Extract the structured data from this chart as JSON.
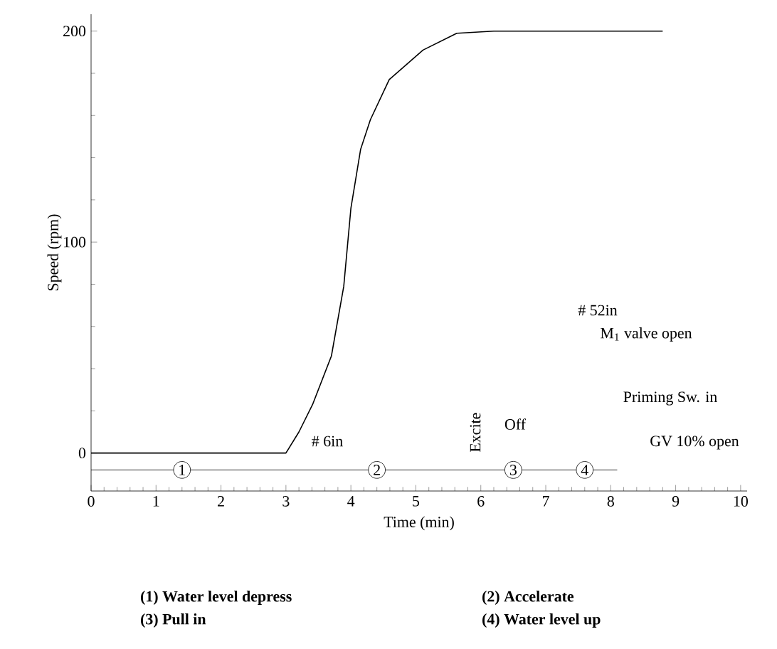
{
  "chart_data": {
    "type": "line",
    "xlabel": "Time (min)",
    "ylabel": "Speed (rpm)",
    "xlim": [
      0,
      10.1
    ],
    "ylim": [
      -18,
      208
    ],
    "xticks": [
      0,
      1,
      2,
      3,
      4,
      5,
      6,
      7,
      8,
      9,
      10
    ],
    "yticks": [
      0,
      100,
      200
    ],
    "grid": false,
    "marker": "none",
    "line_style": "solid",
    "series": [
      {
        "color": "#000000",
        "x": [
          0,
          3,
          3.2,
          3.41,
          3.7,
          3.89,
          4.0,
          4.15,
          4.3,
          4.59,
          5.11,
          5.63,
          6.2,
          7.5,
          8.8
        ],
        "values": [
          0,
          0,
          10,
          23,
          46,
          79,
          116,
          144,
          158,
          177,
          191,
          199,
          200,
          200,
          200
        ]
      },
      {
        "color": "#000000",
        "x": [
          0,
          3,
          6,
          7,
          7.1,
          8.1
        ],
        "values": [
          -8,
          -8,
          -8,
          -8,
          -8,
          -8
        ]
      }
    ],
    "annotations": [
      {
        "text": "1",
        "x": 1.4,
        "y": -8
      },
      {
        "text": "2",
        "x": 4.4,
        "y": -8
      },
      {
        "text": "3",
        "x": 6.5,
        "y": -8
      },
      {
        "text": "4",
        "x": 7.6,
        "y": -8
      },
      "Excite",
      "# 6in",
      "Off",
      "# 52in",
      "M$_{1}$ valve open",
      "Priming Sw. in",
      "GV 10% open",
      "(1)  Water level depress",
      "(2)  Accelerate",
      "(3)  Pull in",
      "(4)  Water level up"
    ]
  }
}
